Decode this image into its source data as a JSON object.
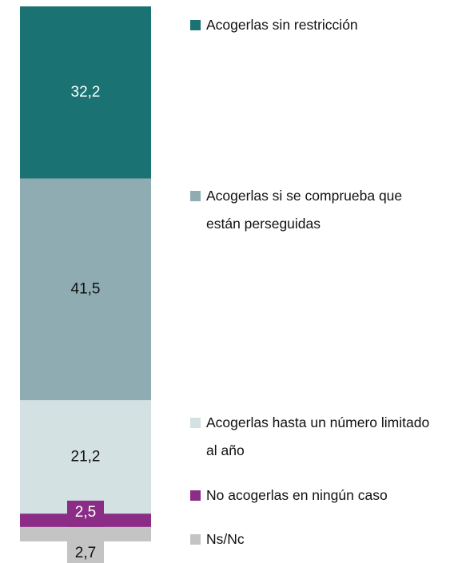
{
  "chart_data": {
    "type": "bar",
    "stacked": true,
    "categories": [
      null
    ],
    "series": [
      {
        "name": "Acogerlas sin restricción",
        "color": "#1b7273",
        "values": [
          32.2
        ],
        "value_labels": [
          "32,2"
        ]
      },
      {
        "name": "Acogerlas si se comprueba que están perseguidas",
        "color": "#8facb3",
        "values": [
          41.5
        ],
        "value_labels": [
          "41,5"
        ]
      },
      {
        "name": "Acogerlas hasta un número limitado al año",
        "color": "#d4e1e3",
        "values": [
          21.2
        ],
        "value_labels": [
          "21,2"
        ]
      },
      {
        "name": "No acogerlas en ningún caso",
        "color": "#8b2c86",
        "values": [
          2.5
        ],
        "value_labels": [
          "2,5"
        ]
      },
      {
        "name": "Ns/Nc",
        "color": "#c4c4c4",
        "values": [
          2.7
        ],
        "value_labels": [
          "2,7"
        ]
      }
    ]
  }
}
